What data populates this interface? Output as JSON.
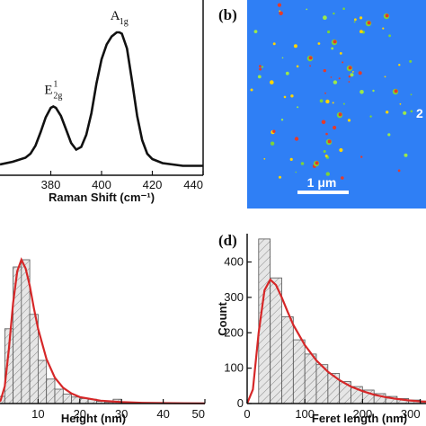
{
  "colors": {
    "fit": "#d62728",
    "bar_fill": "#e6e6e6",
    "afm_bg": "#2f7ff5",
    "axis": "#111111"
  },
  "chart_data": [
    {
      "type": "line",
      "panel": "a",
      "xlabel": "Raman Shift (cm⁻¹)",
      "ylabel": "",
      "xlim": [
        360,
        440
      ],
      "xticks": [
        "380",
        "400",
        "420",
        "440"
      ],
      "series": [
        {
          "x": [
            360,
            365,
            370,
            372,
            374,
            376,
            378,
            380,
            381,
            382,
            384,
            386,
            388,
            390,
            392,
            394,
            396,
            398,
            400,
            402,
            404,
            406,
            407,
            408,
            410,
            412,
            414,
            416,
            418,
            420,
            424,
            428,
            432,
            436,
            440
          ],
          "y": [
            0.02,
            0.04,
            0.07,
            0.1,
            0.16,
            0.26,
            0.37,
            0.44,
            0.45,
            0.44,
            0.38,
            0.28,
            0.18,
            0.13,
            0.15,
            0.24,
            0.4,
            0.62,
            0.8,
            0.91,
            0.97,
            1.0,
            1.0,
            0.99,
            0.88,
            0.64,
            0.38,
            0.2,
            0.1,
            0.06,
            0.03,
            0.02,
            0.01,
            0.01,
            0.01
          ]
        }
      ],
      "peaks": [
        {
          "x": 381,
          "main": "E",
          "sup": "1",
          "sub": "2g"
        },
        {
          "x": 407,
          "main": "A",
          "sup": "",
          "sub": "1g"
        }
      ]
    },
    {
      "type": "image",
      "panel": "b",
      "scale_bar": "1 μm",
      "edge_label": "2"
    },
    {
      "type": "bar",
      "panel": "c",
      "xlabel": "Height (nm)",
      "ylabel": "",
      "xlim": [
        0,
        50
      ],
      "ylim": [
        0,
        1
      ],
      "xticks": [
        "10",
        "20",
        "30",
        "40",
        "50"
      ],
      "bin_width": 2,
      "bins_x": [
        0,
        2,
        4,
        6,
        8,
        10,
        12,
        14,
        16,
        18,
        20,
        22,
        24,
        26,
        28,
        30,
        32,
        34
      ],
      "values": [
        0.05,
        0.52,
        0.95,
        1.0,
        0.62,
        0.3,
        0.17,
        0.1,
        0.065,
        0.045,
        0.035,
        0.03,
        0.015,
        0.01,
        0.03,
        0.01,
        0.008,
        0.005
      ],
      "fit": {
        "x": [
          0,
          1,
          2,
          3,
          4,
          5,
          6,
          7,
          8,
          9,
          10,
          12,
          14,
          16,
          18,
          20,
          25,
          30,
          35,
          40,
          45,
          50
        ],
        "y": [
          0,
          0.02,
          0.12,
          0.38,
          0.7,
          0.92,
          1.0,
          0.94,
          0.82,
          0.66,
          0.52,
          0.31,
          0.18,
          0.11,
          0.07,
          0.045,
          0.02,
          0.01,
          0.005,
          0.003,
          0.002,
          0.001
        ]
      }
    },
    {
      "type": "bar",
      "panel": "d",
      "xlabel": "Feret length (nm)",
      "ylabel": "Count",
      "xlim": [
        0,
        310
      ],
      "ylim": [
        0,
        480
      ],
      "xticks": [
        "0",
        "100",
        "200",
        "300"
      ],
      "yticks": [
        "0",
        "100",
        "200",
        "300",
        "400"
      ],
      "bin_width": 20,
      "bins_x": [
        20,
        40,
        60,
        80,
        100,
        120,
        140,
        160,
        180,
        200,
        220,
        240,
        260,
        280,
        300
      ],
      "values": [
        465,
        355,
        245,
        180,
        140,
        110,
        85,
        62,
        48,
        38,
        28,
        20,
        14,
        10,
        7
      ],
      "fit": {
        "x": [
          0,
          10,
          20,
          30,
          40,
          50,
          60,
          70,
          80,
          100,
          120,
          140,
          160,
          180,
          200,
          220,
          240,
          260,
          280,
          300,
          310
        ],
        "y": [
          0,
          40,
          200,
          320,
          350,
          335,
          300,
          260,
          222,
          165,
          122,
          90,
          66,
          48,
          35,
          25,
          18,
          13,
          9,
          6,
          5
        ]
      }
    }
  ],
  "labels": {
    "panel_b": "(b)",
    "panel_d": "(d)"
  }
}
